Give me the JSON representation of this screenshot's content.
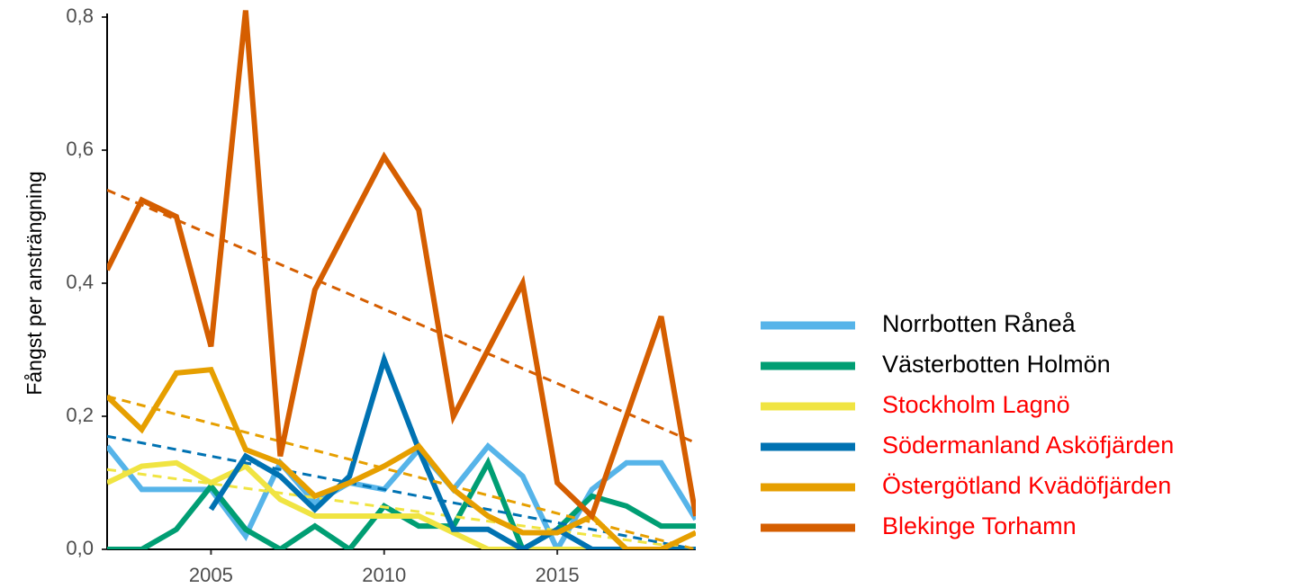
{
  "chart_data": {
    "type": "line",
    "y_label": "Fångst per ansträngning",
    "x": [
      2002,
      2003,
      2004,
      2005,
      2006,
      2007,
      2008,
      2009,
      2010,
      2011,
      2012,
      2013,
      2014,
      2015,
      2016,
      2017,
      2018,
      2019
    ],
    "xlim": [
      2002,
      2019
    ],
    "xticks": [
      2005,
      2010,
      2015
    ],
    "ylim": [
      0,
      0.8
    ],
    "yticks": [
      {
        "value": 0,
        "label": "0,0"
      },
      {
        "value": 0.2,
        "label": "0,2"
      },
      {
        "value": 0.4,
        "label": "0,4"
      },
      {
        "value": 0.6,
        "label": "0,6"
      },
      {
        "value": 0.8,
        "label": "0,8"
      }
    ],
    "series": [
      {
        "name": "Norrbotten Råneå",
        "color": "#56B4E9",
        "label_color": "#000000",
        "values": [
          0.155,
          0.09,
          0.09,
          0.09,
          0.02,
          0.13,
          0.07,
          0.1,
          0.09,
          0.15,
          0.09,
          0.155,
          0.11,
          0.0,
          0.09,
          0.13,
          0.13,
          0.045
        ]
      },
      {
        "name": "Västerbotten Holmön",
        "color": "#009E73",
        "label_color": "#000000",
        "values": [
          0.0,
          0.0,
          0.03,
          0.095,
          0.03,
          0.0,
          0.035,
          0.0,
          0.065,
          0.035,
          0.035,
          0.13,
          0.0,
          0.03,
          0.08,
          0.065,
          0.035,
          0.035
        ]
      },
      {
        "name": "Stockholm Lagnö",
        "color": "#F0E442",
        "label_color": "#ff0000",
        "values": [
          0.1,
          0.125,
          0.13,
          0.1,
          0.125,
          0.075,
          0.05,
          0.05,
          0.05,
          0.05,
          0.025,
          0.0,
          0.0,
          0.0,
          0.0,
          0.0,
          0.0,
          0.0
        ],
        "trend": [
          0.12,
          0.0
        ]
      },
      {
        "name": "Södermanland Asköfjärden",
        "color": "#0072B2",
        "label_color": "#ff0000",
        "values": [
          null,
          null,
          null,
          0.06,
          0.14,
          0.11,
          0.06,
          0.11,
          0.285,
          0.15,
          0.03,
          0.03,
          0.0,
          0.03,
          0.0,
          0.0,
          0.0,
          0.0
        ],
        "trend": [
          0.17,
          0.0
        ]
      },
      {
        "name": "Östergötland Kvädöfjärden",
        "color": "#E69F00",
        "label_color": "#ff0000",
        "values": [
          0.23,
          0.18,
          0.265,
          0.27,
          0.15,
          0.13,
          0.08,
          0.1,
          0.125,
          0.155,
          0.09,
          0.05,
          0.025,
          0.025,
          0.05,
          0.0,
          0.0,
          0.025
        ],
        "trend": [
          0.23,
          0.0
        ]
      },
      {
        "name": "Blekinge Torhamn",
        "color": "#D55E00",
        "label_color": "#ff0000",
        "values": [
          0.42,
          0.525,
          0.5,
          0.305,
          0.81,
          0.14,
          0.39,
          0.49,
          0.59,
          0.51,
          0.2,
          0.3,
          0.4,
          0.1,
          0.05,
          0.2,
          0.35,
          0.05
        ],
        "trend": [
          0.54,
          0.16
        ]
      }
    ]
  }
}
